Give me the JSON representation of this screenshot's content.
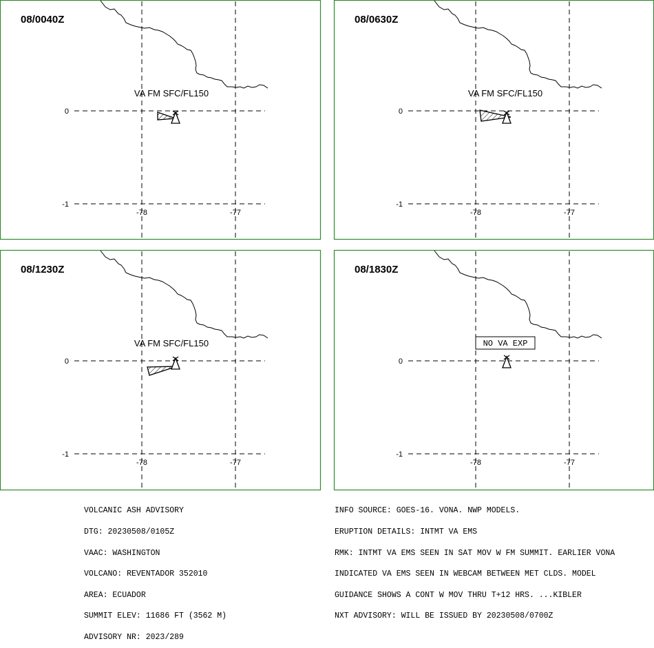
{
  "panels": [
    {
      "id": "p1",
      "time": "08/0040Z",
      "label": "VA FM SFC/FL150",
      "status": "ash"
    },
    {
      "id": "p2",
      "time": "08/0630Z",
      "label": "VA FM SFC/FL150",
      "status": "ash"
    },
    {
      "id": "p3",
      "time": "08/1230Z",
      "label": "VA FM SFC/FL150",
      "status": "ash"
    },
    {
      "id": "p4",
      "time": "08/1830Z",
      "label": "NO VA EXP",
      "status": "none"
    }
  ],
  "axes": {
    "lat_ticks": [
      "0",
      "-1"
    ],
    "lon_ticks": [
      "-78",
      "-77"
    ]
  },
  "advisory_left": [
    "VOLCANIC ASH ADVISORY",
    "DTG: 20230508/0105Z",
    "VAAC: WASHINGTON",
    "VOLCANO: REVENTADOR 352010",
    "AREA: ECUADOR",
    "SUMMIT ELEV: 11686 FT (3562 M)",
    "ADVISORY NR: 2023/289"
  ],
  "advisory_right": [
    "INFO SOURCE: GOES-16. VONA. NWP MODELS.",
    "ERUPTION DETAILS: INTMT VA EMS",
    "RMK: INTMT VA EMS SEEN IN SAT MOV W FM SUMMIT. EARLIER VONA",
    "INDICATED VA EMS SEEN IN WEBCAM BETWEEN MET CLDS. MODEL",
    "GUIDANCE SHOWS A CONT W MOV THRU T+12 HRS. ...KIBLER",
    "NXT ADVISORY: WILL BE ISSUED BY 20230508/0700Z"
  ],
  "colors": {
    "frame": "#2e8b2e"
  }
}
